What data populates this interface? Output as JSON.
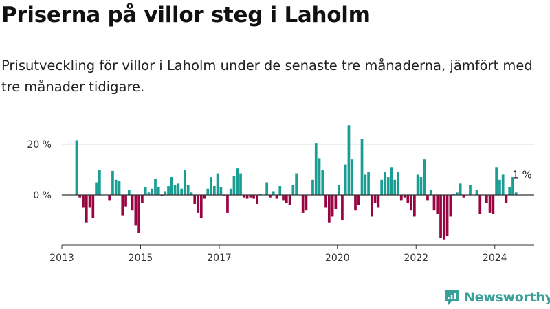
{
  "title": "Priserna på villor steg i Laholm",
  "subtitle": "Prisutveckling för villor i Laholm under de senaste tre månaderna, jämfört med tre månader tidigare.",
  "brand": {
    "name": "Newsworthy",
    "icon": "newsworthy-logo-icon"
  },
  "colors": {
    "positive": "#1a9e94",
    "negative": "#990543",
    "grid": "#dddddd",
    "axis": "#333333",
    "brand": "#3aa09a"
  },
  "chart_data": {
    "type": "bar",
    "title": "",
    "xlabel": "",
    "ylabel": "",
    "y_unit": "%",
    "ylim": [
      -20,
      30
    ],
    "x_range": [
      "2013-01",
      "2024-12"
    ],
    "grid": true,
    "x_ticks": [
      "2013",
      "2015",
      "2017",
      "2020",
      "2022",
      "2024"
    ],
    "y_ticks": [
      {
        "value": 0,
        "label": "0 %"
      },
      {
        "value": 20,
        "label": "20 %"
      }
    ],
    "annotation": {
      "label": "1 %",
      "date": "2024-08",
      "value": 1
    },
    "series": [
      {
        "name": "",
        "points": [
          [
            "2013-05",
            21.5
          ],
          [
            "2013-06",
            -1
          ],
          [
            "2013-07",
            -5
          ],
          [
            "2013-08",
            -11
          ],
          [
            "2013-09",
            -5
          ],
          [
            "2013-10",
            -9
          ],
          [
            "2013-11",
            5
          ],
          [
            "2013-12",
            10
          ],
          [
            "2014-03",
            -2
          ],
          [
            "2014-04",
            9.5
          ],
          [
            "2014-05",
            6
          ],
          [
            "2014-06",
            5.5
          ],
          [
            "2014-07",
            -8
          ],
          [
            "2014-08",
            -4.5
          ],
          [
            "2014-09",
            2
          ],
          [
            "2014-10",
            -6
          ],
          [
            "2014-11",
            -12
          ],
          [
            "2014-12",
            -15
          ],
          [
            "2015-01",
            -3
          ],
          [
            "2015-02",
            3
          ],
          [
            "2015-03",
            1
          ],
          [
            "2015-04",
            2.5
          ],
          [
            "2015-05",
            6.5
          ],
          [
            "2015-06",
            3
          ],
          [
            "2015-07",
            -0.5
          ],
          [
            "2015-08",
            1.5
          ],
          [
            "2015-09",
            3.5
          ],
          [
            "2015-10",
            7
          ],
          [
            "2015-11",
            4
          ],
          [
            "2015-12",
            4.5
          ],
          [
            "2016-01",
            2.5
          ],
          [
            "2016-02",
            10
          ],
          [
            "2016-03",
            4
          ],
          [
            "2016-04",
            1
          ],
          [
            "2016-05",
            -3.5
          ],
          [
            "2016-06",
            -7
          ],
          [
            "2016-07",
            -9
          ],
          [
            "2016-08",
            -1.5
          ],
          [
            "2016-09",
            2.5
          ],
          [
            "2016-10",
            7
          ],
          [
            "2016-11",
            3.5
          ],
          [
            "2016-12",
            8.5
          ],
          [
            "2017-01",
            3
          ],
          [
            "2017-02",
            -0.5
          ],
          [
            "2017-03",
            -7
          ],
          [
            "2017-04",
            2.5
          ],
          [
            "2017-05",
            7.5
          ],
          [
            "2017-06",
            10.5
          ],
          [
            "2017-07",
            8.5
          ],
          [
            "2017-08",
            -1
          ],
          [
            "2017-09",
            -1.5
          ],
          [
            "2017-10",
            -1
          ],
          [
            "2017-11",
            -1.5
          ],
          [
            "2017-12",
            -3.5
          ],
          [
            "2018-01",
            0.5
          ],
          [
            "2018-03",
            5
          ],
          [
            "2018-04",
            -1
          ],
          [
            "2018-05",
            1.5
          ],
          [
            "2018-06",
            -1.5
          ],
          [
            "2018-07",
            3.5
          ],
          [
            "2018-08",
            -2
          ],
          [
            "2018-09",
            -3
          ],
          [
            "2018-10",
            -4
          ],
          [
            "2018-11",
            4
          ],
          [
            "2018-12",
            8.5
          ],
          [
            "2019-02",
            -7
          ],
          [
            "2019-03",
            -6
          ],
          [
            "2019-05",
            6
          ],
          [
            "2019-06",
            20.5
          ],
          [
            "2019-07",
            14.5
          ],
          [
            "2019-08",
            10
          ],
          [
            "2019-09",
            -5
          ],
          [
            "2019-10",
            -11
          ],
          [
            "2019-11",
            -8.5
          ],
          [
            "2019-12",
            -5.5
          ],
          [
            "2020-01",
            4
          ],
          [
            "2020-02",
            -10
          ],
          [
            "2020-03",
            12
          ],
          [
            "2020-04",
            27.5
          ],
          [
            "2020-05",
            14
          ],
          [
            "2020-06",
            -6
          ],
          [
            "2020-07",
            -4
          ],
          [
            "2020-08",
            22
          ],
          [
            "2020-09",
            8
          ],
          [
            "2020-10",
            9
          ],
          [
            "2020-11",
            -8.5
          ],
          [
            "2020-12",
            -3
          ],
          [
            "2021-01",
            -5
          ],
          [
            "2021-02",
            6
          ],
          [
            "2021-03",
            9
          ],
          [
            "2021-04",
            7
          ],
          [
            "2021-05",
            11
          ],
          [
            "2021-06",
            6
          ],
          [
            "2021-07",
            9
          ],
          [
            "2021-08",
            -2
          ],
          [
            "2021-09",
            -1
          ],
          [
            "2021-10",
            -3
          ],
          [
            "2021-11",
            -6
          ],
          [
            "2021-12",
            -8.5
          ],
          [
            "2022-01",
            8
          ],
          [
            "2022-02",
            7
          ],
          [
            "2022-03",
            14
          ],
          [
            "2022-04",
            -2
          ],
          [
            "2022-05",
            2
          ],
          [
            "2022-06",
            -6
          ],
          [
            "2022-07",
            -7.5
          ],
          [
            "2022-08",
            -17
          ],
          [
            "2022-09",
            -17.5
          ],
          [
            "2022-10",
            -16
          ],
          [
            "2022-11",
            -8.5
          ],
          [
            "2022-12",
            0.5
          ],
          [
            "2023-01",
            1
          ],
          [
            "2023-02",
            4.5
          ],
          [
            "2023-03",
            -1
          ],
          [
            "2023-05",
            4
          ],
          [
            "2023-07",
            2
          ],
          [
            "2023-08",
            -7.5
          ],
          [
            "2023-10",
            -3
          ],
          [
            "2023-11",
            -7
          ],
          [
            "2023-12",
            -7.5
          ],
          [
            "2024-01",
            11
          ],
          [
            "2024-02",
            6
          ],
          [
            "2024-03",
            8
          ],
          [
            "2024-04",
            -3
          ],
          [
            "2024-05",
            3
          ],
          [
            "2024-06",
            7
          ],
          [
            "2024-07",
            1
          ]
        ]
      }
    ]
  }
}
